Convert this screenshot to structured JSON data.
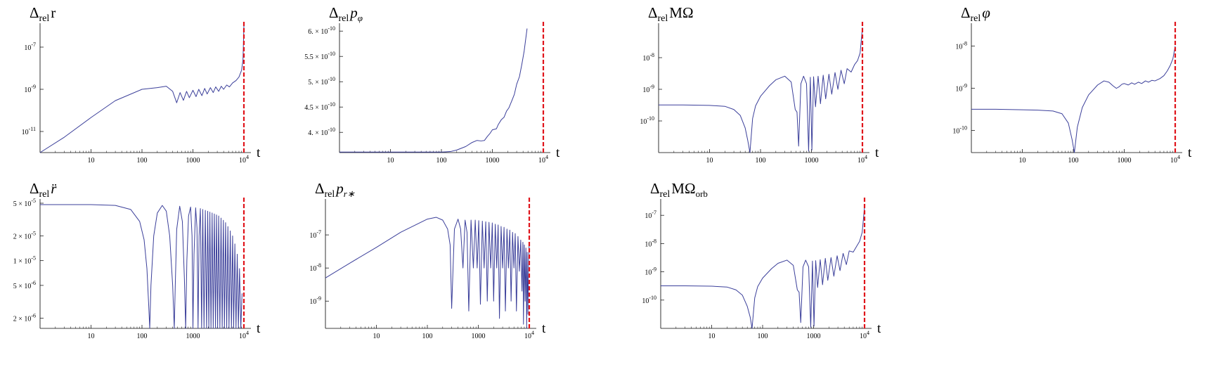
{
  "chart_data": [
    {
      "id": "p1",
      "type": "line",
      "title": {
        "prefix": "Δ",
        "sub": "rel",
        "sym": "r",
        "sym_style": "roman",
        "ssub": ""
      },
      "xlabel": "t",
      "xscale": "log",
      "yscale": "log",
      "xlim": [
        1,
        10000
      ],
      "ylim": [
        1e-12,
        1e-06
      ],
      "xticks": [
        {
          "v": 10,
          "t": "10"
        },
        {
          "v": 100,
          "t": "100"
        },
        {
          "v": 1000,
          "t": "1000"
        },
        {
          "v": 10000,
          "t": "10",
          "sup": "4"
        }
      ],
      "yticks": [
        {
          "v": 1e-07,
          "m": "",
          "e": "-7"
        },
        {
          "v": 1e-09,
          "m": "",
          "e": "-9"
        },
        {
          "v": 1e-11,
          "m": "",
          "e": "-11"
        }
      ],
      "vline": 10000,
      "series": [
        {
          "x": [
            1,
            3,
            10,
            30,
            100,
            200,
            300,
            400,
            480,
            560,
            650,
            750,
            850,
            1000,
            1150,
            1300,
            1500,
            1700,
            1900,
            2200,
            2500,
            2800,
            3200,
            3600,
            4000,
            4600,
            5200,
            6000,
            7000,
            8000,
            9000,
            9600,
            10000
          ],
          "y": [
            1e-12,
            5.4e-12,
            4.6e-11,
            2.9e-10,
            1e-09,
            1.2e-09,
            1.4e-09,
            8e-10,
            2.3e-10,
            7e-10,
            3e-10,
            8e-10,
            4e-10,
            9e-10,
            4.5e-10,
            1e-09,
            5e-10,
            1.1e-09,
            6e-10,
            1.2e-09,
            7e-10,
            1.3e-09,
            8e-10,
            1.4e-09,
            1e-09,
            1.6e-09,
            1.3e-09,
            2e-09,
            2.6e-09,
            3.8e-09,
            8e-09,
            2.5e-08,
            1e-06
          ]
        }
      ]
    },
    {
      "id": "p2",
      "type": "line",
      "title": {
        "prefix": "Δ",
        "sub": "rel",
        "sym": "p",
        "sym_style": "italic",
        "ssub": "φ"
      },
      "xlabel": "t",
      "xscale": "log",
      "yscale": "linear",
      "xlim": [
        1,
        10000
      ],
      "ylim": [
        3.6e-10,
        6.1e-10
      ],
      "xticks": [
        {
          "v": 10,
          "t": "10"
        },
        {
          "v": 100,
          "t": "100"
        },
        {
          "v": 1000,
          "t": "1000"
        },
        {
          "v": 10000,
          "t": "10",
          "sup": "4"
        }
      ],
      "yticks": [
        {
          "v": 6e-10,
          "m": "6. ×",
          "e": "-10"
        },
        {
          "v": 5.5e-10,
          "m": "5.5 ×",
          "e": "-10"
        },
        {
          "v": 5e-10,
          "m": "5. ×",
          "e": "-10"
        },
        {
          "v": 4.5e-10,
          "m": "4.5 ×",
          "e": "-10"
        },
        {
          "v": 4e-10,
          "m": "4. ×",
          "e": "-10"
        }
      ],
      "vline": 10000,
      "series": [
        {
          "x": [
            1,
            10,
            100,
            150,
            200,
            300,
            400,
            500,
            600,
            700,
            800,
            900,
            1000,
            1100,
            1200,
            1300,
            1500,
            1700,
            1900,
            2100,
            2400,
            2700,
            3000,
            3400,
            3800,
            4200,
            4800
          ],
          "y": [
            3.61e-10,
            3.61e-10,
            3.61e-10,
            3.62e-10,
            3.65e-10,
            3.72e-10,
            3.8e-10,
            3.84e-10,
            3.83e-10,
            3.84e-10,
            3.92e-10,
            3.98e-10,
            4.05e-10,
            4.06e-10,
            4.07e-10,
            4.15e-10,
            4.25e-10,
            4.3e-10,
            4.42e-10,
            4.48e-10,
            4.62e-10,
            4.75e-10,
            4.95e-10,
            5.1e-10,
            5.35e-10,
            5.6e-10,
            6.05e-10
          ]
        }
      ]
    },
    {
      "id": "p3",
      "type": "line",
      "title": {
        "prefix": "Δ",
        "sub": "rel",
        "sym": "MΩ",
        "sym_style": "roman",
        "ssub": ""
      },
      "xlabel": "t",
      "xscale": "log",
      "yscale": "log",
      "xlim": [
        1,
        10000
      ],
      "ylim": [
        1e-11,
        1e-07
      ],
      "xticks": [
        {
          "v": 10,
          "t": "10"
        },
        {
          "v": 100,
          "t": "100"
        },
        {
          "v": 1000,
          "t": "1000"
        },
        {
          "v": 10000,
          "t": "10",
          "sup": "4"
        }
      ],
      "yticks": [
        {
          "v": 1e-08,
          "m": "",
          "e": "-8"
        },
        {
          "v": 1e-09,
          "m": "",
          "e": "-9"
        },
        {
          "v": 1e-10,
          "m": "",
          "e": "-10"
        }
      ],
      "vline": 10000,
      "series": [
        {
          "x": [
            1,
            3,
            10,
            20,
            30,
            40,
            50,
            56,
            62,
            70,
            80,
            100,
            150,
            200,
            300,
            400,
            480,
            520,
            560,
            620,
            700,
            800,
            880,
            950,
            1020,
            1100,
            1200,
            1350,
            1500,
            1700,
            1900,
            2200,
            2500,
            2900,
            3300,
            3800,
            4400,
            5000,
            6000,
            7000,
            8000,
            9000,
            10000
          ],
          "y": [
            3.2e-10,
            3.2e-10,
            3.1e-10,
            2.9e-10,
            2.3e-10,
            1.5e-10,
            6e-11,
            2.5e-11,
            1e-11,
            1.2e-10,
            3e-10,
            6e-10,
            1.3e-09,
            2e-09,
            2.6e-09,
            1.7e-09,
            2.3e-10,
            1.9e-10,
            1.6e-11,
            1.5e-09,
            2.6e-09,
            1.5e-09,
            1.1e-11,
            2.4e-09,
            1.2e-11,
            2.5e-09,
            2.8e-10,
            2.6e-09,
            3.5e-10,
            2.8e-09,
            5e-10,
            3e-09,
            7e-10,
            3.4e-09,
            1e-09,
            4e-09,
            1.5e-09,
            4.5e-09,
            3.5e-09,
            6e-09,
            8e-09,
            1.4e-08,
            9e-08
          ]
        }
      ]
    },
    {
      "id": "p4",
      "type": "line",
      "title": {
        "prefix": "Δ",
        "sub": "rel",
        "sym": "φ",
        "sym_style": "italic",
        "ssub": ""
      },
      "xlabel": "t",
      "xscale": "log",
      "yscale": "log",
      "xlim": [
        1,
        10000
      ],
      "ylim": [
        3e-11,
        3e-08
      ],
      "xticks": [
        {
          "v": 10,
          "t": "10"
        },
        {
          "v": 100,
          "t": "100"
        },
        {
          "v": 1000,
          "t": "1000"
        },
        {
          "v": 10000,
          "t": "10",
          "sup": "4"
        }
      ],
      "yticks": [
        {
          "v": 1e-08,
          "m": "",
          "e": "-8"
        },
        {
          "v": 1e-09,
          "m": "",
          "e": "-9"
        },
        {
          "v": 1e-10,
          "m": "",
          "e": "-10"
        }
      ],
      "vline": 10000,
      "series": [
        {
          "x": [
            1,
            3,
            10,
            20,
            40,
            60,
            80,
            95,
            105,
            120,
            150,
            200,
            300,
            400,
            500,
            600,
            700,
            800,
            900,
            1000,
            1200,
            1400,
            1600,
            1900,
            2200,
            2600,
            3000,
            3500,
            4000,
            5000,
            6000,
            7000,
            8000,
            9000,
            10000
          ],
          "y": [
            3.2e-10,
            3.2e-10,
            3.1e-10,
            3.05e-10,
            2.9e-10,
            2.5e-10,
            1.5e-10,
            6e-11,
            3e-11,
            1.2e-10,
            3.5e-10,
            7e-10,
            1.2e-09,
            1.5e-09,
            1.4e-09,
            1.15e-09,
            1e-09,
            1.1e-09,
            1.25e-09,
            1.3e-09,
            1.2e-09,
            1.35e-09,
            1.25e-09,
            1.4e-09,
            1.3e-09,
            1.5e-09,
            1.4e-09,
            1.55e-09,
            1.5e-09,
            1.7e-09,
            2e-09,
            2.6e-09,
            3.5e-09,
            5e-09,
            1e-08
          ]
        }
      ]
    },
    {
      "id": "p5",
      "type": "line",
      "title": {
        "prefix": "Δ",
        "sub": "rel",
        "sym": "r̈",
        "sym_style": "italic",
        "ssub": ""
      },
      "xlabel": "t",
      "xscale": "log",
      "yscale": "log",
      "xlim": [
        1,
        10000
      ],
      "ylim": [
        1.5e-06,
        5.2e-05
      ],
      "xticks": [
        {
          "v": 10,
          "t": "10"
        },
        {
          "v": 100,
          "t": "100"
        },
        {
          "v": 1000,
          "t": "1000"
        },
        {
          "v": 10000,
          "t": "10",
          "sup": "4"
        }
      ],
      "yticks": [
        {
          "v": 5e-05,
          "m": "5 ×",
          "e": "-5"
        },
        {
          "v": 2e-05,
          "m": "2 ×",
          "e": "-5"
        },
        {
          "v": 1e-05,
          "m": "1 ×",
          "e": "-5"
        },
        {
          "v": 5e-06,
          "m": "5 ×",
          "e": "-6"
        },
        {
          "v": 2e-06,
          "m": "2 ×",
          "e": "-6"
        }
      ],
      "vline": 10000,
      "series": [
        {
          "x": [
            1,
            10,
            30,
            60,
            90,
            110,
            125,
            135,
            142,
            150,
            170,
            200,
            250,
            300,
            350,
            400,
            430,
            450,
            480,
            550,
            620,
            680,
            720,
            760,
            820,
            900,
            960,
            1000,
            1050,
            1130,
            1200,
            1260,
            1320,
            1400,
            1480,
            1560,
            1650,
            1750,
            1850,
            1950,
            2050,
            2150,
            2260,
            2380,
            2500,
            2630,
            2770,
            2900,
            3050,
            3200,
            3380,
            3560,
            3750,
            3950,
            4150,
            4370,
            4600,
            4850,
            5100,
            5400,
            5700,
            6000,
            6300,
            6650,
            7000,
            7400,
            7800,
            8200,
            8700,
            9200
          ],
          "y": [
            4.8e-05,
            4.8e-05,
            4.7e-05,
            4.2e-05,
            3e-05,
            1.8e-05,
            8e-06,
            3e-06,
            1.5e-06,
            5e-06,
            2e-05,
            3.8e-05,
            4.7e-05,
            4e-05,
            2e-05,
            5e-06,
            1.5e-06,
            5e-06,
            2.4e-05,
            4.6e-05,
            3e-05,
            6e-06,
            1.5e-06,
            1e-05,
            3.5e-05,
            4.5e-05,
            2e-05,
            1.5e-06,
            1.2e-05,
            4.4e-05,
            2.5e-05,
            1.5e-06,
            2e-05,
            4.3e-05,
            1.5e-06,
            4.2e-05,
            1.5e-06,
            4.1e-05,
            1.5e-06,
            4e-05,
            1.5e-06,
            3.9e-05,
            1.5e-06,
            3.8e-05,
            1.5e-06,
            3.7e-05,
            1.5e-06,
            3.6e-05,
            1.5e-06,
            3.5e-05,
            1.5e-06,
            3.3e-05,
            1.5e-06,
            3.1e-05,
            1.5e-06,
            2.9e-05,
            1.5e-06,
            2.6e-05,
            1.5e-06,
            2.3e-05,
            1.5e-06,
            2e-05,
            1.5e-06,
            1.6e-05,
            1.5e-06,
            1.2e-05,
            1.5e-06,
            8e-06,
            1.5e-06,
            4e-06
          ]
        }
      ]
    },
    {
      "id": "p6",
      "type": "line",
      "title": {
        "prefix": "Δ",
        "sub": "rel",
        "sym": "p",
        "sym_style": "italic",
        "ssub": "r∗"
      },
      "xlabel": "t",
      "xscale": "log",
      "yscale": "log",
      "xlim": [
        1,
        10000
      ],
      "ylim": [
        1.5e-10,
        1e-06
      ],
      "xticks": [
        {
          "v": 10,
          "t": "10"
        },
        {
          "v": 100,
          "t": "100"
        },
        {
          "v": 1000,
          "t": "1000"
        },
        {
          "v": 10000,
          "t": "10",
          "sup": "4"
        }
      ],
      "yticks": [
        {
          "v": 1e-07,
          "m": "",
          "e": "-7"
        },
        {
          "v": 1e-08,
          "m": "",
          "e": "-8"
        },
        {
          "v": 1e-09,
          "m": "",
          "e": "-9"
        }
      ],
      "vline": 10000,
      "series": [
        {
          "x": [
            1,
            3,
            10,
            30,
            100,
            150,
            200,
            250,
            280,
            300,
            340,
            400,
            450,
            500,
            550,
            600,
            650,
            720,
            800,
            870,
            950,
            1020,
            1100,
            1200,
            1300,
            1400,
            1500,
            1620,
            1750,
            1880,
            2000,
            2150,
            2300,
            2450,
            2600,
            2800,
            3000,
            3200,
            3400,
            3650,
            3900,
            4150,
            4400,
            4700,
            5000,
            5300,
            5600,
            6000,
            6400,
            6800,
            7200,
            7500,
            7700,
            8000,
            8300,
            8600,
            8900,
            9100,
            9400,
            9700,
            10000
          ],
          "y": [
            5e-09,
            1.4e-08,
            4.2e-08,
            1.2e-07,
            3e-07,
            3.4e-07,
            2.8e-07,
            1.5e-07,
            5e-08,
            6e-10,
            1.5e-07,
            3e-07,
            1.5e-07,
            1e-08,
            2.8e-07,
            1.2e-07,
            5e-10,
            2.8e-07,
            1e-08,
            2.8e-07,
            1e-08,
            2.7e-07,
            8e-10,
            2.6e-07,
            1e-08,
            2.5e-07,
            1e-09,
            2.4e-07,
            1e-08,
            2.3e-07,
            1e-09,
            2.1e-07,
            1e-08,
            2e-07,
            3e-10,
            1.8e-07,
            1e-08,
            1.7e-07,
            5e-10,
            1.5e-07,
            1e-08,
            1.4e-07,
            1e-09,
            1.2e-07,
            1e-08,
            1.1e-07,
            5e-10,
            9e-08,
            8e-09,
            7e-08,
            2e-09,
            6e-08,
            2e-10,
            5e-08,
            1e-09,
            4e-08,
            1.2e-10,
            3e-08,
            4e-10,
            2e-08,
            6e-08
          ]
        }
      ]
    },
    {
      "id": "p7",
      "type": "line",
      "title": {
        "prefix": "Δ",
        "sub": "rel",
        "sym": "MΩ",
        "sym_style": "roman",
        "ssub": "",
        "rsub": "orb"
      },
      "xlabel": "t",
      "xscale": "log",
      "yscale": "log",
      "xlim": [
        1,
        10000
      ],
      "ylim": [
        1e-11,
        3e-07
      ],
      "xticks": [
        {
          "v": 10,
          "t": "10"
        },
        {
          "v": 100,
          "t": "100"
        },
        {
          "v": 1000,
          "t": "1000"
        },
        {
          "v": 10000,
          "t": "10",
          "sup": "4"
        }
      ],
      "yticks": [
        {
          "v": 1e-07,
          "m": "",
          "e": "-7"
        },
        {
          "v": 1e-08,
          "m": "",
          "e": "-8"
        },
        {
          "v": 1e-09,
          "m": "",
          "e": "-9"
        },
        {
          "v": 1e-10,
          "m": "",
          "e": "-10"
        }
      ],
      "vline": 10000,
      "series": [
        {
          "x": [
            1,
            3,
            10,
            20,
            30,
            40,
            50,
            57,
            62,
            70,
            80,
            100,
            150,
            200,
            300,
            400,
            480,
            520,
            560,
            620,
            700,
            800,
            880,
            950,
            1020,
            1100,
            1200,
            1350,
            1500,
            1700,
            1900,
            2200,
            2500,
            2900,
            3300,
            3800,
            4400,
            5000,
            6000,
            7000,
            8000,
            9000,
            10000
          ],
          "y": [
            3.2e-10,
            3.2e-10,
            3.1e-10,
            2.9e-10,
            2.3e-10,
            1.5e-10,
            6e-11,
            2.5e-11,
            1e-11,
            1.2e-10,
            3e-10,
            6e-10,
            1.3e-09,
            2e-09,
            2.6e-09,
            1.7e-09,
            2.3e-10,
            1.9e-10,
            1.6e-11,
            1.5e-09,
            2.6e-09,
            1.5e-09,
            1.1e-11,
            2.4e-09,
            1.2e-11,
            2.5e-09,
            2.8e-10,
            2.7e-09,
            3.5e-10,
            3e-09,
            5e-10,
            3.2e-09,
            7e-10,
            3.7e-09,
            1.1e-09,
            4.5e-09,
            1.8e-09,
            5.5e-09,
            5e-09,
            8e-09,
            1.2e-08,
            2.5e-08,
            2e-07
          ]
        }
      ]
    }
  ]
}
